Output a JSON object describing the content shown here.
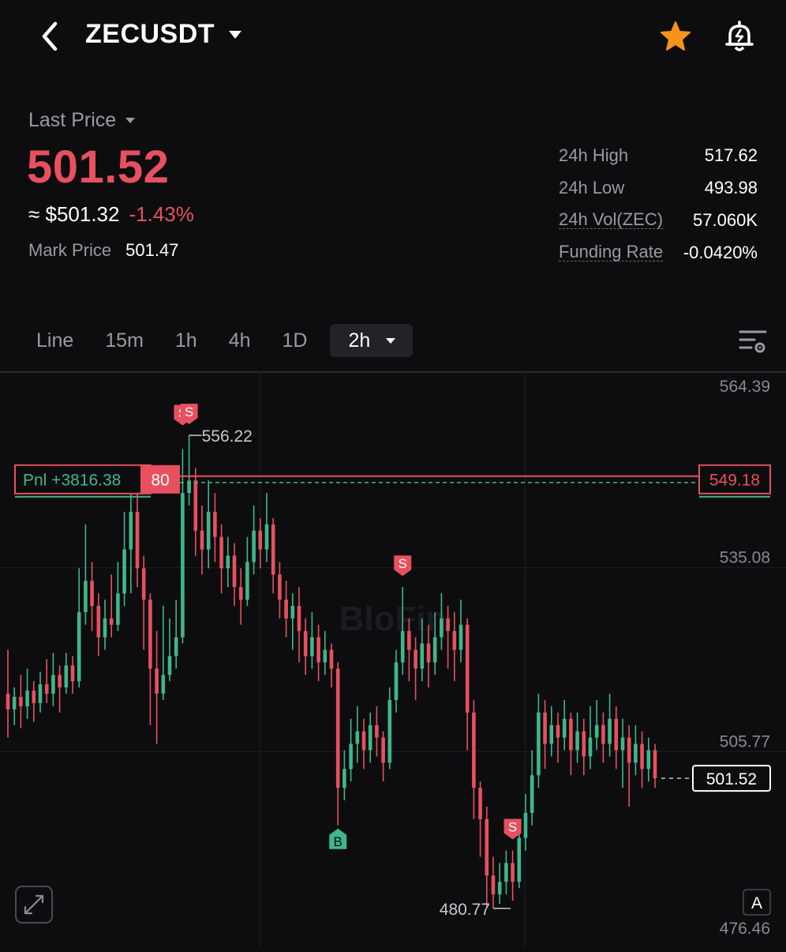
{
  "header": {
    "symbol": "ZECUSDT"
  },
  "price": {
    "last_price_label": "Last Price",
    "last_price": "501.52",
    "approx_usd": "≈ $501.32",
    "change_pct": "-1.43%",
    "mark_price_label": "Mark Price",
    "mark_price": "501.47"
  },
  "stats": [
    {
      "label": "24h High",
      "value": "517.62"
    },
    {
      "label": "24h Low",
      "value": "493.98"
    },
    {
      "label": "24h Vol(ZEC)",
      "value": "57.060K"
    },
    {
      "label": "Funding Rate",
      "value": "-0.0420%"
    }
  ],
  "tabs": [
    "Line",
    "15m",
    "1h",
    "4h",
    "1D"
  ],
  "active_interval": "2h",
  "colors": {
    "up": "#3fb68b",
    "down": "#e8505f",
    "background": "#0d0d0f",
    "accent_star": "#f7931a"
  },
  "chart_data": {
    "type": "candlestick",
    "y_axis_ticks": [
      "564.39",
      "535.08",
      "505.77",
      "476.46"
    ],
    "ylim": [
      476.46,
      564.39
    ],
    "position_line": {
      "value": "549.18",
      "pnl_label": "Pnl +3816.38",
      "size": "80"
    },
    "current_price_tag": "501.52",
    "max_label": "556.22",
    "min_label": "480.77",
    "markers": [
      {
        "type": "S",
        "index": 27
      },
      {
        "type": "S",
        "index": 28
      },
      {
        "type": "S",
        "index": 61
      },
      {
        "type": "B",
        "index": 51
      },
      {
        "type": "S",
        "index": 78
      }
    ],
    "corner_button": "A",
    "candles": [
      [
        515.0,
        512.5,
        522.0,
        508.0
      ],
      [
        512.5,
        514.5,
        516.0,
        510.0
      ],
      [
        514.5,
        513.0,
        518.0,
        509.5
      ],
      [
        513.0,
        515.5,
        519.0,
        511.0
      ],
      [
        515.5,
        513.5,
        517.0,
        510.5
      ],
      [
        513.5,
        516.5,
        518.5,
        512.0
      ],
      [
        516.5,
        515.0,
        520.5,
        513.5
      ],
      [
        515.0,
        518.0,
        521.5,
        513.0
      ],
      [
        518.0,
        516.0,
        519.5,
        512.0
      ],
      [
        516.0,
        519.5,
        521.5,
        515.0
      ],
      [
        519.5,
        517.0,
        521.0,
        515.0
      ],
      [
        517.0,
        528.0,
        535.0,
        516.0
      ],
      [
        528.0,
        533.0,
        542.0,
        526.0
      ],
      [
        533.0,
        529.0,
        536.0,
        525.0
      ],
      [
        529.0,
        524.0,
        531.0,
        521.0
      ],
      [
        524.0,
        527.0,
        530.0,
        522.0
      ],
      [
        527.0,
        526.0,
        534.0,
        524.0
      ],
      [
        526.0,
        531.0,
        536.0,
        525.0
      ],
      [
        531.0,
        538.0,
        544.0,
        529.0
      ],
      [
        538.0,
        544.0,
        548.0,
        531.0
      ],
      [
        544.0,
        535.0,
        548.0,
        532.0
      ],
      [
        535.0,
        530.0,
        537.0,
        522.0
      ],
      [
        530.0,
        519.0,
        531.0,
        510.0
      ],
      [
        519.0,
        515.0,
        525.0,
        507.0
      ],
      [
        515.0,
        518.0,
        529.0,
        514.0
      ],
      [
        518.0,
        521.0,
        527.0,
        517.0
      ],
      [
        521.0,
        524.0,
        530.0,
        519.0
      ],
      [
        524.0,
        547.0,
        554.0,
        523.0
      ],
      [
        547.0,
        549.0,
        556.2,
        545.0
      ],
      [
        549.0,
        541.0,
        551.0,
        537.0
      ],
      [
        541.0,
        538.0,
        545.0,
        534.0
      ],
      [
        538.0,
        544.0,
        549.0,
        535.0
      ],
      [
        544.0,
        540.0,
        547.0,
        536.0
      ],
      [
        540.0,
        535.0,
        542.0,
        531.0
      ],
      [
        535.0,
        537.0,
        540.0,
        532.0
      ],
      [
        537.0,
        532.0,
        539.0,
        529.0
      ],
      [
        532.0,
        530.0,
        535.0,
        526.0
      ],
      [
        530.0,
        536.0,
        540.0,
        529.0
      ],
      [
        536.0,
        541.0,
        545.0,
        534.0
      ],
      [
        541.0,
        538.0,
        543.0,
        535.0
      ],
      [
        538.0,
        542.0,
        547.0,
        536.0
      ],
      [
        542.0,
        534.0,
        543.0,
        531.0
      ],
      [
        534.0,
        530.0,
        536.0,
        527.0
      ],
      [
        530.0,
        527.0,
        533.0,
        524.0
      ],
      [
        527.0,
        529.0,
        531.0,
        522.0
      ],
      [
        529.0,
        525.0,
        532.0,
        520.0
      ],
      [
        525.0,
        521.0,
        527.0,
        518.0
      ],
      [
        521.0,
        524.0,
        528.0,
        519.0
      ],
      [
        524.0,
        520.0,
        526.0,
        517.0
      ],
      [
        520.0,
        522.0,
        525.0,
        518.0
      ],
      [
        522.0,
        519.0,
        523.0,
        516.0
      ],
      [
        519.0,
        500.0,
        520.0,
        494.0
      ],
      [
        500.0,
        503.0,
        506.0,
        498.0
      ],
      [
        503.0,
        507.0,
        511.0,
        501.0
      ],
      [
        507.0,
        509.0,
        513.0,
        504.0
      ],
      [
        509.0,
        506.0,
        511.0,
        503.0
      ],
      [
        506.0,
        510.0,
        512.0,
        504.0
      ],
      [
        510.0,
        508.0,
        513.0,
        505.0
      ],
      [
        508.0,
        504.0,
        509.0,
        501.0
      ],
      [
        504.0,
        514.0,
        516.0,
        503.0
      ],
      [
        514.0,
        520.0,
        522.0,
        512.0
      ],
      [
        520.0,
        525.0,
        532.0,
        518.0
      ],
      [
        525.0,
        522.0,
        527.0,
        517.0
      ],
      [
        522.0,
        519.0,
        524.0,
        514.0
      ],
      [
        519.0,
        523.0,
        527.0,
        517.0
      ],
      [
        523.0,
        520.0,
        526.0,
        516.0
      ],
      [
        520.0,
        524.0,
        528.0,
        518.0
      ],
      [
        524.0,
        527.0,
        531.0,
        522.0
      ],
      [
        527.0,
        525.0,
        529.0,
        519.0
      ],
      [
        525.0,
        522.0,
        528.0,
        517.0
      ],
      [
        522.0,
        526.0,
        530.0,
        520.0
      ],
      [
        526.0,
        512.0,
        527.0,
        506.0
      ],
      [
        512.0,
        500.0,
        514.0,
        495.0
      ],
      [
        500.0,
        495.0,
        501.0,
        489.0
      ],
      [
        495.0,
        486.0,
        497.0,
        481.0
      ],
      [
        486.0,
        483.0,
        489.0,
        480.77
      ],
      [
        483.0,
        485.0,
        488.0,
        481.5
      ],
      [
        485.0,
        488.0,
        490.0,
        483.0
      ],
      [
        488.0,
        485.0,
        490.0,
        482.0
      ],
      [
        485.0,
        492.0,
        494.0,
        484.0
      ],
      [
        492.0,
        496.0,
        499.0,
        490.0
      ],
      [
        496.0,
        502.0,
        506.0,
        494.0
      ],
      [
        502.0,
        512.0,
        515.0,
        500.0
      ],
      [
        512.0,
        507.0,
        514.0,
        503.0
      ],
      [
        507.0,
        510.0,
        513.0,
        505.0
      ],
      [
        510.0,
        508.0,
        512.0,
        504.0
      ],
      [
        508.0,
        511.0,
        514.0,
        506.0
      ],
      [
        511.0,
        506.0,
        512.0,
        502.0
      ],
      [
        506.0,
        509.0,
        512.0,
        504.0
      ],
      [
        509.0,
        505.0,
        511.0,
        502.0
      ],
      [
        505.0,
        508.0,
        513.0,
        503.0
      ],
      [
        508.0,
        510.0,
        514.0,
        506.0
      ],
      [
        510.0,
        507.0,
        512.0,
        504.0
      ],
      [
        507.0,
        511.0,
        515.0,
        505.0
      ],
      [
        511.0,
        506.0,
        513.0,
        503.0
      ],
      [
        506.0,
        508.0,
        511.0,
        500.0
      ],
      [
        508.0,
        504.0,
        510.0,
        497.0
      ],
      [
        504.0,
        507.0,
        510.0,
        502.0
      ],
      [
        507.0,
        503.0,
        509.0,
        500.0
      ],
      [
        503.0,
        506.0,
        508.0,
        501.0
      ],
      [
        506.0,
        501.52,
        507.0,
        500.0
      ]
    ]
  }
}
